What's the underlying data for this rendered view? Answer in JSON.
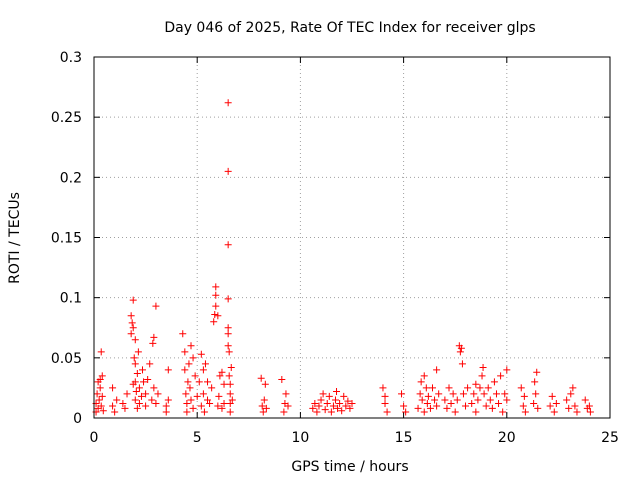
{
  "chart_data": {
    "type": "scatter",
    "title": "Day 046 of 2025, Rate Of TEC Index for receiver glps",
    "xlabel": "GPS time / hours",
    "ylabel": "ROTI / TECUs",
    "xlim": [
      0,
      25
    ],
    "ylim": [
      0,
      0.3
    ],
    "xticks": [
      0,
      5,
      10,
      15,
      20,
      25
    ],
    "xtick_labels": [
      "0",
      "5",
      "10",
      "15",
      "20",
      "25"
    ],
    "yticks": [
      0,
      0.05,
      0.1,
      0.15,
      0.2,
      0.25,
      0.3
    ],
    "ytick_labels": [
      "0",
      "0.05",
      "0.1",
      "0.15",
      "0.2",
      "0.25",
      "0.3"
    ],
    "grid": true,
    "marker": "+",
    "marker_color": "#ff0000",
    "series": [
      {
        "name": "ROTI",
        "points": [
          [
            0.1,
            0.005
          ],
          [
            0.1,
            0.012
          ],
          [
            0.15,
            0.02
          ],
          [
            0.2,
            0.03
          ],
          [
            0.2,
            0.008
          ],
          [
            0.25,
            0.015
          ],
          [
            0.3,
            0.025
          ],
          [
            0.3,
            0.032
          ],
          [
            0.35,
            0.01
          ],
          [
            0.35,
            0.055
          ],
          [
            0.4,
            0.018
          ],
          [
            0.4,
            0.035
          ],
          [
            0.45,
            0.006
          ],
          [
            0.9,
            0.01
          ],
          [
            0.9,
            0.025
          ],
          [
            1.0,
            0.005
          ],
          [
            1.1,
            0.015
          ],
          [
            1.4,
            0.012
          ],
          [
            1.5,
            0.008
          ],
          [
            1.6,
            0.02
          ],
          [
            1.8,
            0.07
          ],
          [
            1.8,
            0.085
          ],
          [
            1.85,
            0.079
          ],
          [
            1.9,
            0.075
          ],
          [
            1.9,
            0.098
          ],
          [
            1.9,
            0.028
          ],
          [
            1.95,
            0.05
          ],
          [
            2.0,
            0.065
          ],
          [
            2.0,
            0.045
          ],
          [
            2.0,
            0.03
          ],
          [
            2.0,
            0.015
          ],
          [
            2.05,
            0.022
          ],
          [
            2.1,
            0.037
          ],
          [
            2.1,
            0.008
          ],
          [
            2.15,
            0.055
          ],
          [
            2.2,
            0.012
          ],
          [
            2.2,
            0.025
          ],
          [
            2.3,
            0.018
          ],
          [
            2.35,
            0.04
          ],
          [
            2.4,
            0.03
          ],
          [
            2.5,
            0.02
          ],
          [
            2.5,
            0.01
          ],
          [
            2.6,
            0.032
          ],
          [
            2.7,
            0.045
          ],
          [
            2.8,
            0.015
          ],
          [
            2.85,
            0.062
          ],
          [
            2.9,
            0.067
          ],
          [
            2.9,
            0.025
          ],
          [
            3.0,
            0.012
          ],
          [
            3.0,
            0.093
          ],
          [
            3.1,
            0.02
          ],
          [
            3.5,
            0.01
          ],
          [
            3.5,
            0.005
          ],
          [
            3.6,
            0.015
          ],
          [
            3.6,
            0.04
          ],
          [
            4.3,
            0.07
          ],
          [
            4.4,
            0.055
          ],
          [
            4.4,
            0.04
          ],
          [
            4.45,
            0.02
          ],
          [
            4.5,
            0.012
          ],
          [
            4.5,
            0.005
          ],
          [
            4.55,
            0.03
          ],
          [
            4.6,
            0.045
          ],
          [
            4.65,
            0.025
          ],
          [
            4.7,
            0.06
          ],
          [
            4.7,
            0.015
          ],
          [
            4.8,
            0.05
          ],
          [
            4.8,
            0.008
          ],
          [
            4.9,
            0.035
          ],
          [
            5.0,
            0.018
          ],
          [
            5.1,
            0.03
          ],
          [
            5.2,
            0.053
          ],
          [
            5.2,
            0.01
          ],
          [
            5.3,
            0.04
          ],
          [
            5.3,
            0.02
          ],
          [
            5.35,
            0.005
          ],
          [
            5.4,
            0.045
          ],
          [
            5.5,
            0.015
          ],
          [
            5.5,
            0.03
          ],
          [
            5.6,
            0.012
          ],
          [
            5.7,
            0.025
          ],
          [
            5.8,
            0.08
          ],
          [
            5.85,
            0.086
          ],
          [
            5.9,
            0.093
          ],
          [
            5.9,
            0.102
          ],
          [
            5.9,
            0.109
          ],
          [
            6.0,
            0.085
          ],
          [
            6.0,
            0.01
          ],
          [
            6.05,
            0.018
          ],
          [
            6.1,
            0.035
          ],
          [
            6.2,
            0.038
          ],
          [
            6.2,
            0.008
          ],
          [
            6.3,
            0.012
          ],
          [
            6.3,
            0.028
          ],
          [
            6.5,
            0.262
          ],
          [
            6.5,
            0.205
          ],
          [
            6.5,
            0.144
          ],
          [
            6.5,
            0.099
          ],
          [
            6.5,
            0.075
          ],
          [
            6.5,
            0.07
          ],
          [
            6.5,
            0.06
          ],
          [
            6.55,
            0.055
          ],
          [
            6.55,
            0.035
          ],
          [
            6.6,
            0.028
          ],
          [
            6.6,
            0.02
          ],
          [
            6.6,
            0.012
          ],
          [
            6.6,
            0.005
          ],
          [
            6.65,
            0.042
          ],
          [
            6.7,
            0.015
          ],
          [
            8.1,
            0.033
          ],
          [
            8.15,
            0.01
          ],
          [
            8.2,
            0.005
          ],
          [
            8.25,
            0.015
          ],
          [
            8.3,
            0.028
          ],
          [
            8.35,
            0.008
          ],
          [
            9.1,
            0.032
          ],
          [
            9.2,
            0.005
          ],
          [
            9.25,
            0.012
          ],
          [
            9.3,
            0.02
          ],
          [
            9.4,
            0.01
          ],
          [
            10.6,
            0.008
          ],
          [
            10.7,
            0.012
          ],
          [
            10.8,
            0.005
          ],
          [
            10.9,
            0.01
          ],
          [
            11.0,
            0.015
          ],
          [
            11.1,
            0.02
          ],
          [
            11.2,
            0.007
          ],
          [
            11.3,
            0.012
          ],
          [
            11.4,
            0.018
          ],
          [
            11.5,
            0.005
          ],
          [
            11.6,
            0.01
          ],
          [
            11.7,
            0.015
          ],
          [
            11.75,
            0.022
          ],
          [
            11.8,
            0.008
          ],
          [
            11.9,
            0.012
          ],
          [
            12.0,
            0.006
          ],
          [
            12.1,
            0.018
          ],
          [
            12.2,
            0.01
          ],
          [
            12.3,
            0.014
          ],
          [
            12.4,
            0.008
          ],
          [
            12.5,
            0.012
          ],
          [
            14.0,
            0.025
          ],
          [
            14.1,
            0.012
          ],
          [
            14.2,
            0.005
          ],
          [
            14.1,
            0.018
          ],
          [
            14.9,
            0.02
          ],
          [
            15.0,
            0.01
          ],
          [
            15.1,
            0.005
          ],
          [
            15.7,
            0.008
          ],
          [
            15.8,
            0.02
          ],
          [
            15.85,
            0.03
          ],
          [
            15.9,
            0.015
          ],
          [
            16.0,
            0.035
          ],
          [
            16.0,
            0.005
          ],
          [
            16.1,
            0.025
          ],
          [
            16.15,
            0.012
          ],
          [
            16.2,
            0.018
          ],
          [
            16.3,
            0.008
          ],
          [
            16.4,
            0.025
          ],
          [
            16.5,
            0.015
          ],
          [
            16.6,
            0.04
          ],
          [
            16.6,
            0.01
          ],
          [
            16.7,
            0.02
          ],
          [
            17.0,
            0.015
          ],
          [
            17.1,
            0.008
          ],
          [
            17.2,
            0.025
          ],
          [
            17.3,
            0.012
          ],
          [
            17.4,
            0.02
          ],
          [
            17.5,
            0.005
          ],
          [
            17.6,
            0.015
          ],
          [
            17.7,
            0.06
          ],
          [
            17.75,
            0.055
          ],
          [
            17.8,
            0.058
          ],
          [
            17.85,
            0.045
          ],
          [
            17.9,
            0.02
          ],
          [
            18.0,
            0.01
          ],
          [
            18.1,
            0.025
          ],
          [
            18.3,
            0.012
          ],
          [
            18.4,
            0.02
          ],
          [
            18.5,
            0.028
          ],
          [
            18.5,
            0.005
          ],
          [
            18.6,
            0.015
          ],
          [
            18.7,
            0.025
          ],
          [
            18.8,
            0.035
          ],
          [
            18.85,
            0.042
          ],
          [
            18.9,
            0.02
          ],
          [
            19.0,
            0.01
          ],
          [
            19.1,
            0.025
          ],
          [
            19.2,
            0.015
          ],
          [
            19.3,
            0.008
          ],
          [
            19.4,
            0.03
          ],
          [
            19.5,
            0.02
          ],
          [
            19.6,
            0.012
          ],
          [
            19.7,
            0.035
          ],
          [
            19.8,
            0.005
          ],
          [
            19.9,
            0.02
          ],
          [
            20.0,
            0.04
          ],
          [
            20.0,
            0.015
          ],
          [
            20.7,
            0.025
          ],
          [
            20.8,
            0.01
          ],
          [
            20.85,
            0.018
          ],
          [
            20.9,
            0.005
          ],
          [
            21.3,
            0.012
          ],
          [
            21.35,
            0.03
          ],
          [
            21.4,
            0.02
          ],
          [
            21.45,
            0.038
          ],
          [
            21.5,
            0.008
          ],
          [
            22.1,
            0.01
          ],
          [
            22.2,
            0.018
          ],
          [
            22.3,
            0.005
          ],
          [
            22.4,
            0.012
          ],
          [
            22.9,
            0.015
          ],
          [
            23.0,
            0.008
          ],
          [
            23.1,
            0.02
          ],
          [
            23.2,
            0.025
          ],
          [
            23.3,
            0.01
          ],
          [
            23.4,
            0.005
          ],
          [
            23.8,
            0.015
          ],
          [
            23.9,
            0.008
          ],
          [
            24.0,
            0.01
          ],
          [
            24.05,
            0.005
          ]
        ]
      }
    ]
  }
}
